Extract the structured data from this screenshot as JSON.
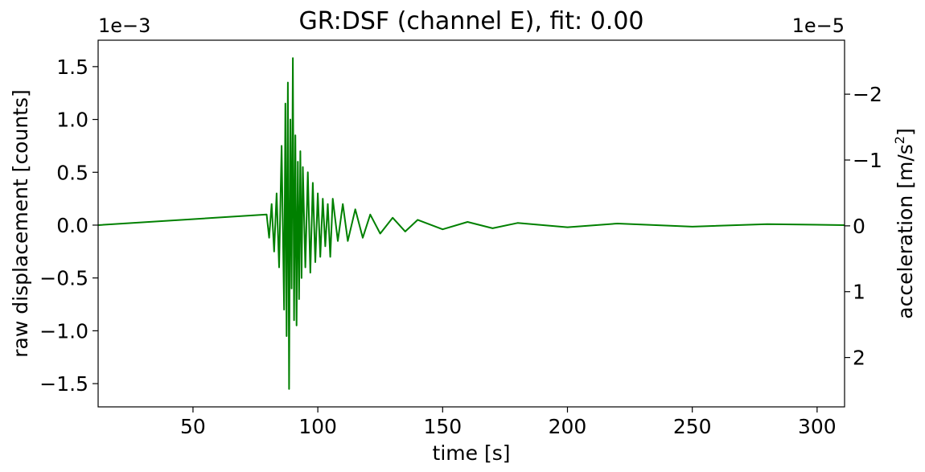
{
  "chart_data": {
    "type": "line",
    "title": "GR:DSF  (channel E), fit: 0.00",
    "xlabel": "time [s]",
    "ylabel": "raw displacement [counts]",
    "y2label_main": "acceleration [m/s",
    "y2label_sup": "2",
    "y2label_end": "]",
    "y_offset_text": "1e−3",
    "y2_offset_text": "1e−5",
    "xlim": [
      12,
      311
    ],
    "ylim": [
      -1.72,
      1.75
    ],
    "y2lim": [
      2.75,
      -2.82
    ],
    "x_ticks": [
      50,
      100,
      150,
      200,
      250,
      300
    ],
    "x_tick_labels": [
      "50",
      "100",
      "150",
      "200",
      "250",
      "300"
    ],
    "y_ticks": [
      -1.5,
      -1.0,
      -0.5,
      0.0,
      0.5,
      1.0,
      1.5
    ],
    "y_tick_labels": [
      "−1.5",
      "−1.0",
      "−0.5",
      "0.0",
      "0.5",
      "1.0",
      "1.5"
    ],
    "y2_ticks": [
      2,
      1,
      0,
      -1,
      -2
    ],
    "y2_tick_labels": [
      "2",
      "1",
      "0",
      "−1",
      "−2"
    ],
    "grid": false,
    "series": [
      {
        "color": "#008000",
        "x": [
          12,
          79.5,
          80.5,
          81.5,
          82.5,
          83.5,
          84.5,
          85.5,
          86.5,
          87.0,
          87.5,
          88.0,
          88.5,
          89.0,
          89.5,
          90.0,
          90.5,
          91.0,
          91.5,
          92.0,
          92.5,
          93.0,
          93.5,
          94.0,
          95.0,
          96.0,
          97.0,
          98.0,
          99.0,
          100.0,
          101.0,
          102.0,
          103.0,
          104.0,
          105.0,
          106.0,
          108.0,
          110.0,
          112.0,
          115.0,
          118.0,
          121.0,
          125.0,
          130.0,
          135.0,
          140.0,
          150.0,
          160.0,
          170.0,
          180.0,
          200.0,
          220.0,
          250.0,
          280.0,
          311.0
        ],
        "y": [
          0.0,
          0.1,
          -0.12,
          0.2,
          -0.25,
          0.3,
          -0.4,
          0.75,
          -0.8,
          1.15,
          -1.05,
          1.35,
          -1.55,
          1.0,
          -0.6,
          1.58,
          -0.9,
          0.85,
          -0.95,
          0.6,
          -0.7,
          0.7,
          -0.5,
          0.55,
          -0.4,
          0.5,
          -0.45,
          0.4,
          -0.35,
          0.3,
          -0.3,
          0.25,
          -0.2,
          0.2,
          -0.3,
          0.25,
          -0.15,
          0.2,
          -0.15,
          0.15,
          -0.12,
          0.1,
          -0.08,
          0.07,
          -0.06,
          0.05,
          -0.04,
          0.03,
          -0.03,
          0.02,
          -0.02,
          0.015,
          -0.015,
          0.01,
          0.0
        ]
      }
    ]
  }
}
